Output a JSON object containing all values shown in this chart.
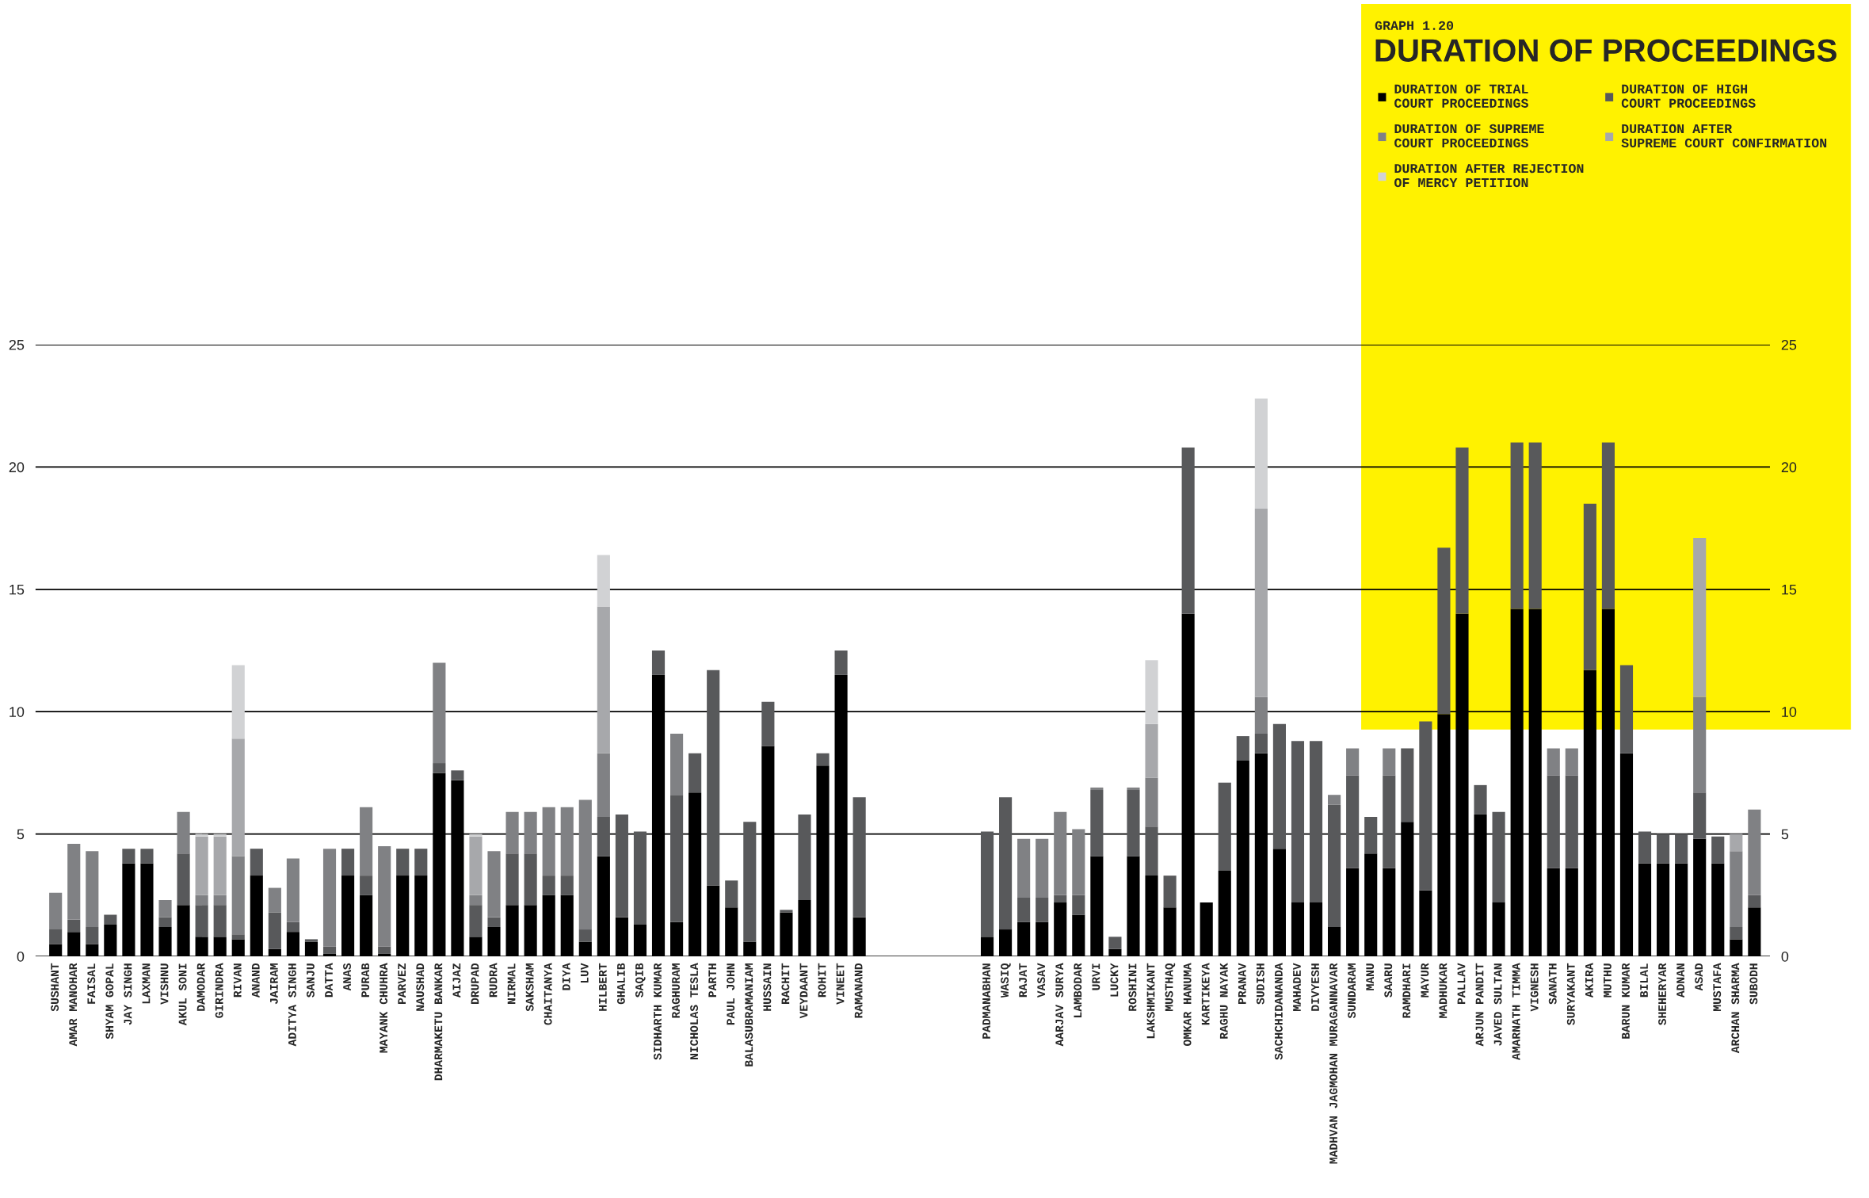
{
  "chart_data": {
    "type": "bar",
    "stacked": true,
    "subtitle": "GRAPH 1.20",
    "title": "DURATION OF PROCEEDINGS",
    "categories": [
      "SUSHANT",
      "AMAR MANOHAR",
      "FAISAL",
      "SHYAM GOPAL",
      "JAY SINGH",
      "LAXMAN",
      "VISHNU",
      "AKUL SONI",
      "DAMODAR",
      "GIRINDRA",
      "RIVAN",
      "ANAND",
      "JAIRAM",
      "ADITYA SINGH",
      "SANJU",
      "DATTA",
      "ANAS",
      "PURAB",
      "MAYANK CHUHRA",
      "PARVEZ",
      "NAUSHAD",
      "DHARMAKETU BANKAR",
      "AIJAZ",
      "DRUPAD",
      "RUDRA",
      "NIRMAL",
      "SAKSHAM",
      "CHAITANYA",
      "DIYA",
      "LUV",
      "HILBERT",
      "GHALIB",
      "SAQIB",
      "SIDHARTH KUMAR",
      "RAGHURAM",
      "NICHOLAS TESLA",
      "PARTH",
      "PAUL JOHN",
      "BALASUBRAMANIAM",
      "HUSSAIN",
      "RACHIT",
      "VEYDAANT",
      "ROHIT",
      "VINEET",
      "RAMANAND",
      null,
      null,
      null,
      null,
      null,
      null,
      "PADMANABHAN",
      "WASIQ",
      "RAJAT",
      "VASAV",
      "AARJAV SURYA",
      "LAMBODAR",
      "URVI",
      "LUCKY",
      "ROSHINI",
      "LAKSHMIKANT",
      "MUSTHAQ",
      "OMKAR HANUMA",
      "KARTIKEYA",
      "RAGHU NAYAK",
      "PRANAV",
      "SUDISH",
      "SACHCHIDANANDA",
      "MAHADEV",
      "DIVYESH",
      "MADHVAN JAGMOHAN MURAGANNAVAR",
      "SUNDARAM",
      "MANU",
      "SAARU",
      "RAMDHARI",
      "MAYUR",
      "MADHUKAR",
      "PALLAV",
      "ARJUN PANDIT",
      "JAVED SULTAN",
      "AMARNATH TIMMA",
      "VIGNESH",
      "SANATH",
      "SURYAKANT",
      "AKIRA",
      "MUTHU",
      "BARUN KUMAR",
      "BILAL",
      "SHEHERYAR",
      "ADNAN",
      "ASAD",
      "MUSTAFA",
      "ARCHAN SHARMA",
      "SUBODH"
    ],
    "series": [
      {
        "name": "DURATION OF TRIAL\nCOURT PROCEEDINGS",
        "color": "#000000",
        "values": [
          0.5,
          1.0,
          0.5,
          1.3,
          3.8,
          3.8,
          1.2,
          2.1,
          0.8,
          0.8,
          0.7,
          3.3,
          0.3,
          1.0,
          0.6,
          0.1,
          3.3,
          2.5,
          0.1,
          3.3,
          3.3,
          7.5,
          7.2,
          0.8,
          1.2,
          2.1,
          2.1,
          2.5,
          2.5,
          0.6,
          4.1,
          1.6,
          1.3,
          11.5,
          1.4,
          6.7,
          2.9,
          2.0,
          0.6,
          8.6,
          1.8,
          2.3,
          7.8,
          11.5,
          1.6,
          null,
          null,
          null,
          null,
          null,
          null,
          0.8,
          1.1,
          1.4,
          1.4,
          2.2,
          1.7,
          4.1,
          0.3,
          4.1,
          3.3,
          2.0,
          14.0,
          2.2,
          3.5,
          8.0,
          8.3,
          4.4,
          2.2,
          2.2,
          1.2,
          3.6,
          4.2,
          3.6,
          5.5,
          2.7,
          9.9,
          14.0,
          5.8,
          2.2,
          14.2,
          14.2,
          3.6,
          3.6,
          11.7,
          14.2,
          8.3,
          3.8,
          3.8,
          3.8,
          4.8,
          3.8,
          0.7,
          2.0
        ]
      },
      {
        "name": "DURATION OF HIGH\nCOURT PROCEEDINGS",
        "color": "#58595b",
        "values": [
          0.6,
          0.5,
          0.7,
          0.4,
          0.6,
          0.6,
          0.4,
          2.1,
          1.3,
          1.3,
          0.2,
          1.1,
          1.5,
          0.4,
          0.1,
          0.3,
          1.1,
          0.8,
          0.3,
          1.1,
          1.1,
          0.4,
          0.4,
          1.3,
          0.4,
          2.1,
          2.1,
          0.8,
          0.8,
          0.5,
          1.6,
          4.2,
          3.8,
          1.0,
          5.2,
          1.6,
          8.8,
          1.1,
          4.9,
          1.8,
          0.1,
          3.5,
          0.5,
          1.0,
          4.9,
          null,
          null,
          null,
          null,
          null,
          null,
          4.3,
          5.4,
          1.0,
          1.0,
          0.3,
          0.8,
          2.7,
          0.5,
          2.7,
          2.0,
          1.3,
          6.8,
          null,
          3.6,
          1.0,
          0.8,
          5.1,
          6.6,
          6.6,
          5.0,
          3.8,
          1.5,
          3.8,
          3.0,
          6.9,
          6.8,
          6.8,
          1.2,
          3.7,
          6.8,
          6.8,
          3.8,
          3.8,
          6.8,
          6.8,
          3.6,
          1.3,
          1.2,
          1.2,
          1.9,
          1.1,
          0.5,
          0.5
        ]
      },
      {
        "name": "DURATION OF SUPREME\nCOURT PROCEEDINGS",
        "color": "#808184",
        "values": [
          1.5,
          3.1,
          3.1,
          null,
          null,
          null,
          0.7,
          1.7,
          0.4,
          0.4,
          3.2,
          null,
          1.0,
          2.6,
          null,
          4.0,
          null,
          2.8,
          4.1,
          null,
          null,
          4.1,
          null,
          0.4,
          2.7,
          1.7,
          1.7,
          2.8,
          2.8,
          5.3,
          2.6,
          null,
          null,
          null,
          2.5,
          null,
          null,
          null,
          null,
          null,
          null,
          null,
          null,
          null,
          null,
          null,
          null,
          null,
          null,
          null,
          null,
          null,
          null,
          2.4,
          2.4,
          3.4,
          2.7,
          0.1,
          null,
          0.1,
          2.0,
          null,
          null,
          null,
          null,
          null,
          1.5,
          null,
          null,
          null,
          0.4,
          1.1,
          null,
          1.1,
          null,
          null,
          null,
          null,
          null,
          null,
          null,
          null,
          1.1,
          1.1,
          null,
          null,
          null,
          null,
          null,
          null,
          3.9,
          null,
          3.1,
          3.5
        ]
      },
      {
        "name": "DURATION AFTER\nSUPREME COURT CONFIRMATION",
        "color": "#a7a8ab",
        "values": [
          null,
          null,
          null,
          null,
          null,
          null,
          null,
          null,
          2.4,
          2.4,
          4.8,
          null,
          null,
          null,
          null,
          null,
          null,
          null,
          null,
          null,
          null,
          null,
          null,
          2.4,
          null,
          null,
          null,
          null,
          null,
          null,
          6.0,
          null,
          null,
          null,
          null,
          null,
          null,
          null,
          null,
          null,
          null,
          null,
          null,
          null,
          null,
          null,
          null,
          null,
          null,
          null,
          null,
          null,
          null,
          null,
          null,
          null,
          null,
          null,
          null,
          null,
          2.2,
          null,
          null,
          null,
          null,
          null,
          7.7,
          null,
          null,
          null,
          null,
          null,
          null,
          null,
          null,
          null,
          null,
          null,
          null,
          null,
          null,
          null,
          null,
          null,
          null,
          null,
          null,
          null,
          null,
          null,
          6.5,
          null,
          0.7,
          null
        ]
      },
      {
        "name": "DURATION AFTER REJECTION\nOF MERCY PETITION",
        "color": "#d1d2d4",
        "values": [
          null,
          null,
          null,
          null,
          null,
          null,
          null,
          null,
          0.1,
          0.1,
          3.0,
          null,
          null,
          null,
          null,
          null,
          null,
          null,
          null,
          null,
          null,
          null,
          null,
          0.1,
          null,
          null,
          null,
          null,
          null,
          null,
          2.1,
          null,
          null,
          null,
          null,
          null,
          null,
          null,
          null,
          null,
          null,
          null,
          null,
          null,
          null,
          null,
          null,
          null,
          null,
          null,
          null,
          null,
          null,
          null,
          null,
          null,
          null,
          null,
          null,
          null,
          2.6,
          null,
          null,
          null,
          null,
          null,
          4.5,
          null,
          null,
          null,
          null,
          null,
          null,
          null,
          null,
          null,
          null,
          null,
          null,
          null,
          null,
          null,
          null,
          null,
          null,
          null,
          null,
          null,
          null,
          null,
          null,
          null,
          null,
          null
        ]
      }
    ],
    "ylim": [
      0,
      25
    ],
    "yticks": [
      0,
      5,
      10,
      15,
      20,
      25
    ],
    "y2lim": [
      0,
      25
    ],
    "y2ticks": [
      0,
      5,
      10,
      15,
      20,
      25
    ],
    "grid": "y",
    "legend": "top right"
  }
}
